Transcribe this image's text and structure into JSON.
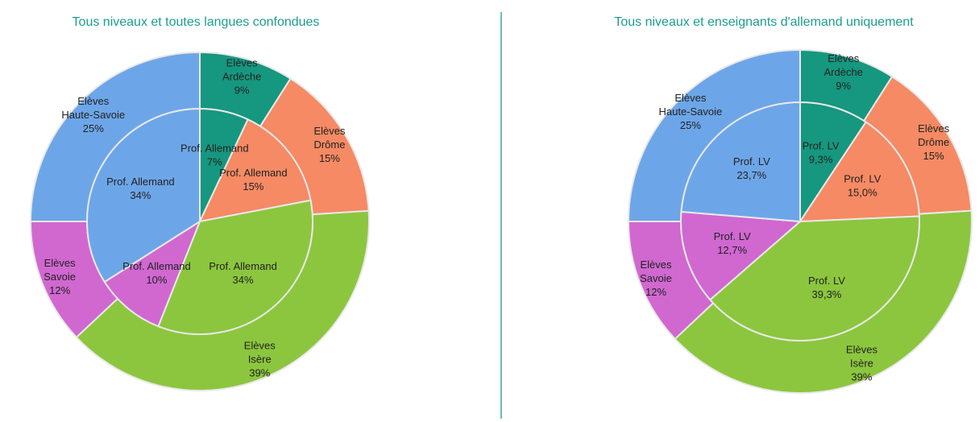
{
  "chart_data": [
    {
      "type": "donut",
      "title": "Tous niveaux et toutes langues confondues",
      "categories": [
        "Ardèche",
        "Drôme",
        "Isère",
        "Savoie",
        "Haute-Savoie"
      ],
      "colors": [
        "#16977f",
        "#f58a64",
        "#8cc63e",
        "#d068d0",
        "#6da6e8"
      ],
      "series": [
        {
          "name": "Elèves",
          "values": [
            9,
            15,
            39,
            12,
            25
          ],
          "value_labels": [
            "9%",
            "15%",
            "39%",
            "12%",
            "25%"
          ]
        },
        {
          "name": "Prof. Allemand",
          "values": [
            7,
            15,
            34,
            10,
            34
          ],
          "value_labels": [
            "7%",
            "15%",
            "34%",
            "10%",
            "34%"
          ]
        }
      ]
    },
    {
      "type": "donut",
      "title": "Tous niveaux et enseignants d'allemand uniquement",
      "categories": [
        "Ardèche",
        "Drôme",
        "Isère",
        "Savoie",
        "Haute-Savoie"
      ],
      "colors": [
        "#16977f",
        "#f58a64",
        "#8cc63e",
        "#d068d0",
        "#6da6e8"
      ],
      "series": [
        {
          "name": "Elèves",
          "values": [
            9,
            15,
            39,
            12,
            25
          ],
          "value_labels": [
            "9%",
            "15%",
            "39%",
            "12%",
            "25%"
          ]
        },
        {
          "name": "Prof. LV",
          "values": [
            9.3,
            15.0,
            39.3,
            12.7,
            23.7
          ],
          "value_labels": [
            "9,3%",
            "15,0%",
            "39,3%",
            "12,7%",
            "23,7%"
          ]
        }
      ]
    }
  ]
}
